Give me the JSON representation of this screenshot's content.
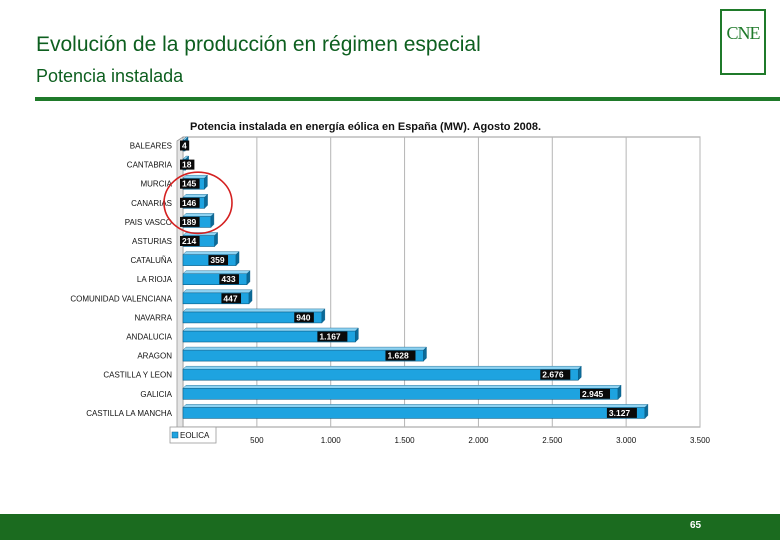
{
  "slide": {
    "title": "Evolución de la producción en régimen especial",
    "subtitle": "Potencia instalada",
    "logo_text": "CNE",
    "page_number": "65",
    "colors": {
      "brand_green": "#1f7a2a",
      "footer_green": "#1b6b1f",
      "bar": "#1ea3e0",
      "highlight_circle": "#d42020"
    }
  },
  "chart_data": {
    "type": "bar",
    "orientation": "horizontal",
    "title": "Potencia instalada en energía eólica en España (MW). Agosto 2008.",
    "categories": [
      "BALEARES",
      "CANTABRIA",
      "MURCIA",
      "CANARIAS",
      "PAIS VASCO",
      "ASTURIAS",
      "CATALUÑA",
      "LA RIOJA",
      "COMUNIDAD VALENCIANA",
      "NAVARRA",
      "ANDALUCIA",
      "ARAGON",
      "CASTILLA Y LEON",
      "GALICIA",
      "CASTILLA LA MANCHA"
    ],
    "values": [
      4,
      18,
      145,
      146,
      189,
      214,
      359,
      433,
      447,
      940,
      1167,
      1628,
      2676,
      2945,
      3127
    ],
    "value_labels": [
      "4",
      "18",
      "145",
      "146",
      "189",
      "214",
      "359",
      "433",
      "447",
      "940",
      "1.167",
      "1.628",
      "2.676",
      "2.945",
      "3.127"
    ],
    "x_ticks": [
      500,
      1000,
      1500,
      2000,
      2500,
      3000,
      3500
    ],
    "x_tick_labels": [
      "500",
      "1.000",
      "1.500",
      "2.000",
      "2.500",
      "3.000",
      "3.500"
    ],
    "xlim": [
      0,
      3500
    ],
    "grid": true,
    "legend": {
      "entries": [
        "EOLICA"
      ],
      "position": "bottom-left"
    },
    "highlighted_categories": [
      "MURCIA",
      "CANARIAS",
      "PAIS VASCO"
    ]
  }
}
